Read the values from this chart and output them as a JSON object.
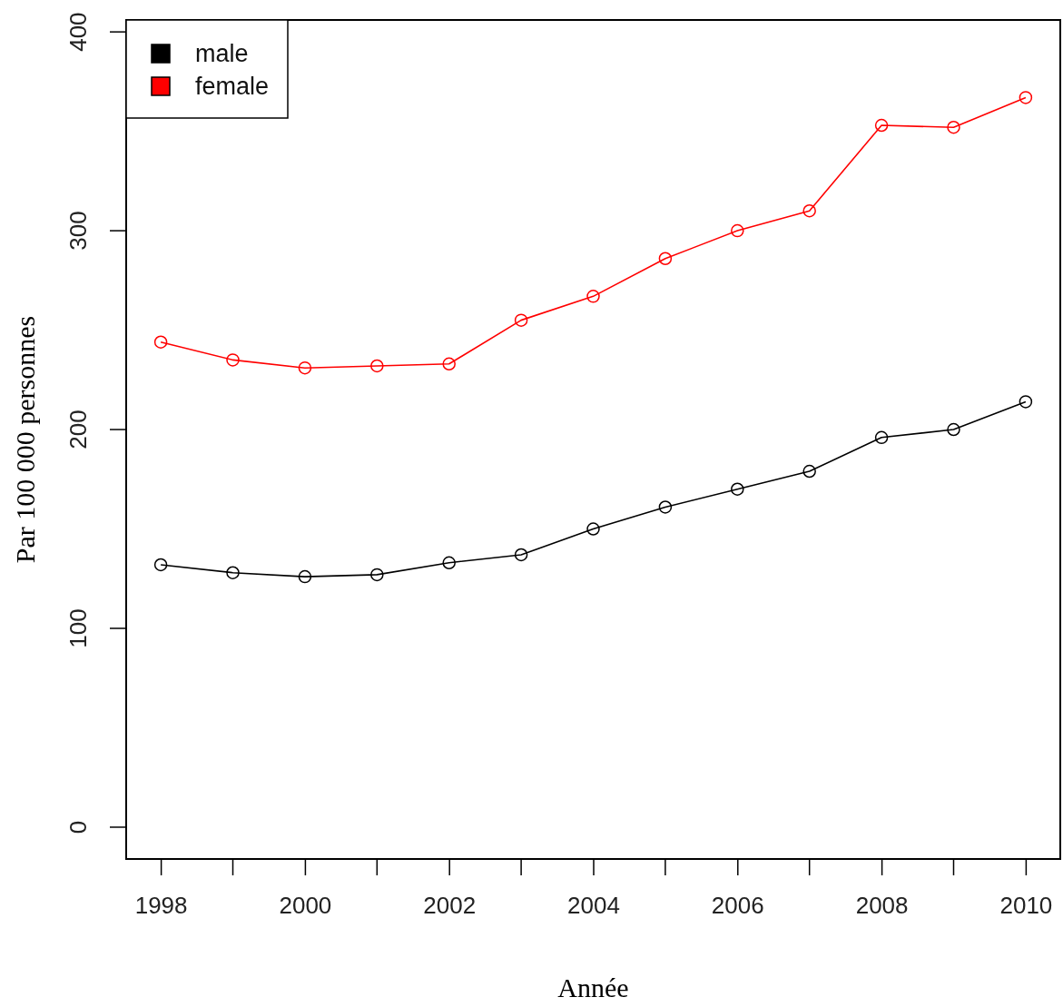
{
  "chart_data": {
    "type": "line",
    "xlabel": "Année",
    "ylabel": "Par 100 000 personnes",
    "x": [
      1998,
      1999,
      2000,
      2001,
      2002,
      2003,
      2004,
      2005,
      2006,
      2007,
      2008,
      2009,
      2010
    ],
    "series": [
      {
        "name": "male",
        "color": "#000000",
        "values": [
          132,
          128,
          126,
          127,
          133,
          137,
          150,
          161,
          170,
          179,
          196,
          200,
          214
        ]
      },
      {
        "name": "female",
        "color": "#ff0000",
        "values": [
          244,
          235,
          231,
          232,
          233,
          255,
          267,
          286,
          300,
          310,
          353,
          352,
          367
        ]
      }
    ],
    "xlim": [
      1997.52,
      2010.48
    ],
    "ylim": [
      -16,
      406
    ],
    "xticks": [
      1998,
      2000,
      2002,
      2004,
      2006,
      2008,
      2010
    ],
    "yticks": [
      0,
      100,
      200,
      300,
      400
    ],
    "legend": "top left",
    "marker": "circle",
    "line_style": "solid",
    "grid": false
  }
}
